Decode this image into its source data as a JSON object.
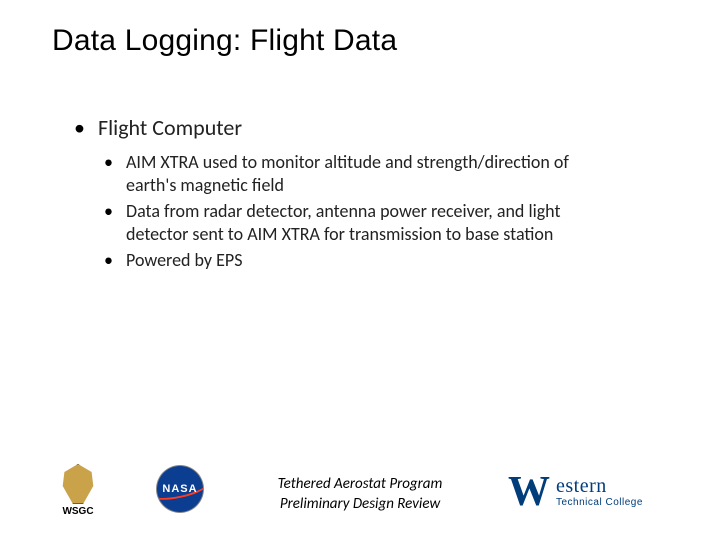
{
  "title": "Data Logging: Flight Data",
  "content": {
    "heading": "Flight Computer",
    "points": {
      "p0": "AIM XTRA used to monitor altitude and strength/direction of earth's magnetic field",
      "p1": "Data from radar detector, antenna power receiver, and light detector sent to AIM XTRA for transmission to base station",
      "p2": "Powered by EPS"
    }
  },
  "footer": {
    "line1": "Tethered Aerostat Program",
    "line2": "Preliminary Design Review"
  },
  "logos": {
    "wsgc": {
      "label": "WSGC",
      "shape_color": "#c9a24a",
      "border_color": "#7a5c20"
    },
    "nasa": {
      "label": "NASA",
      "bg_color": "#0b3d91",
      "swoosh_color": "#fc3d21",
      "text_color": "#ffffff"
    },
    "western": {
      "main": "estern",
      "w": "W",
      "sub": "Technical College",
      "color": "#003d7a"
    }
  },
  "style": {
    "background": "#ffffff",
    "title_fontsize": 30,
    "body_fontsize_l1": 22,
    "body_fontsize_l2": 18,
    "footer_fontsize": 15,
    "text_color": "#000000"
  }
}
